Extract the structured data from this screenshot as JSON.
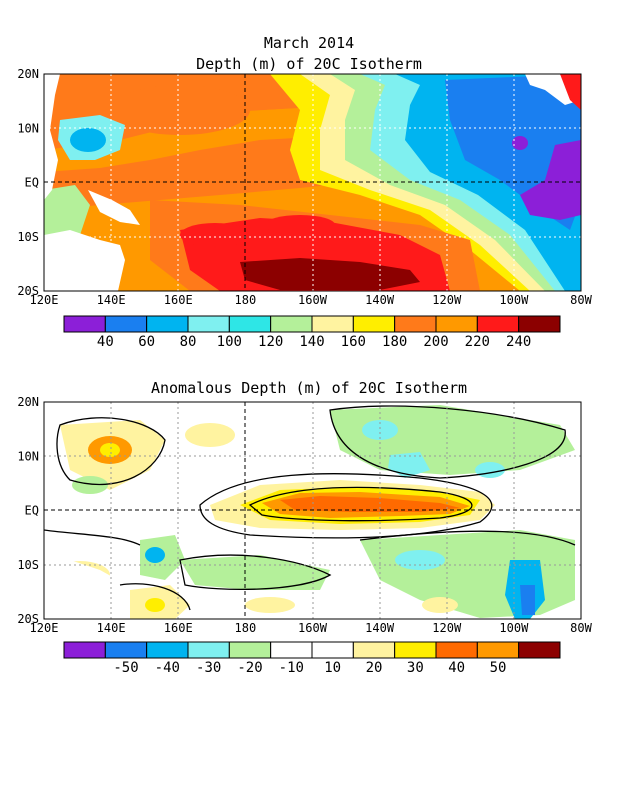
{
  "panels": [
    {
      "title_line1": "March 2014",
      "title_line2": "Depth (m) of 20C Isotherm",
      "lat_labels": [
        "20N",
        "10N",
        "EQ",
        "10S",
        "20S"
      ],
      "lon_labels": [
        "120E",
        "140E",
        "160E",
        "180",
        "160W",
        "140W",
        "120W",
        "100W",
        "80W"
      ],
      "colorbar": {
        "colors": [
          "#8c1fd8",
          "#1a7ff0",
          "#00b4f0",
          "#7ff0f0",
          "#2ee6e6",
          "#b4f09a",
          "#fff3a0",
          "#ffee00",
          "#ff7a1a",
          "#ff9900",
          "#ff1a1a",
          "#8c0000"
        ],
        "labels": [
          "40",
          "60",
          "80",
          "100",
          "120",
          "140",
          "160",
          "180",
          "200",
          "220",
          "240"
        ]
      }
    },
    {
      "title_line1": "Anomalous Depth (m) of 20C Isotherm",
      "lat_labels": [
        "20N",
        "10N",
        "EQ",
        "10S",
        "20S"
      ],
      "lon_labels": [
        "120E",
        "140E",
        "160E",
        "180",
        "160W",
        "140W",
        "120W",
        "100W",
        "80W"
      ],
      "colorbar": {
        "colors": [
          "#8c1fd8",
          "#1a7ff0",
          "#00b4f0",
          "#7ff0f0",
          "#b4f09a",
          "#ffffff",
          "#ffffff",
          "#fff3a0",
          "#ffee00",
          "#ff6a00",
          "#ff9900",
          "#8c0000"
        ],
        "labels": [
          "-50",
          "-40",
          "-30",
          "-20",
          "-10",
          "10",
          "20",
          "30",
          "40",
          "50"
        ]
      }
    }
  ],
  "field_colors": {
    "deep": "#8c0000",
    "red": "#ff1a1a",
    "orange": "#ff7a1a",
    "lorange": "#ff9900",
    "yellow": "#ffee00",
    "lyellow": "#fff3a0",
    "lgreen": "#b4f09a",
    "cyan": "#7ff0f0",
    "lblue": "#00b4f0",
    "blue": "#1a7ff0",
    "purple": "#8c1fd8"
  }
}
